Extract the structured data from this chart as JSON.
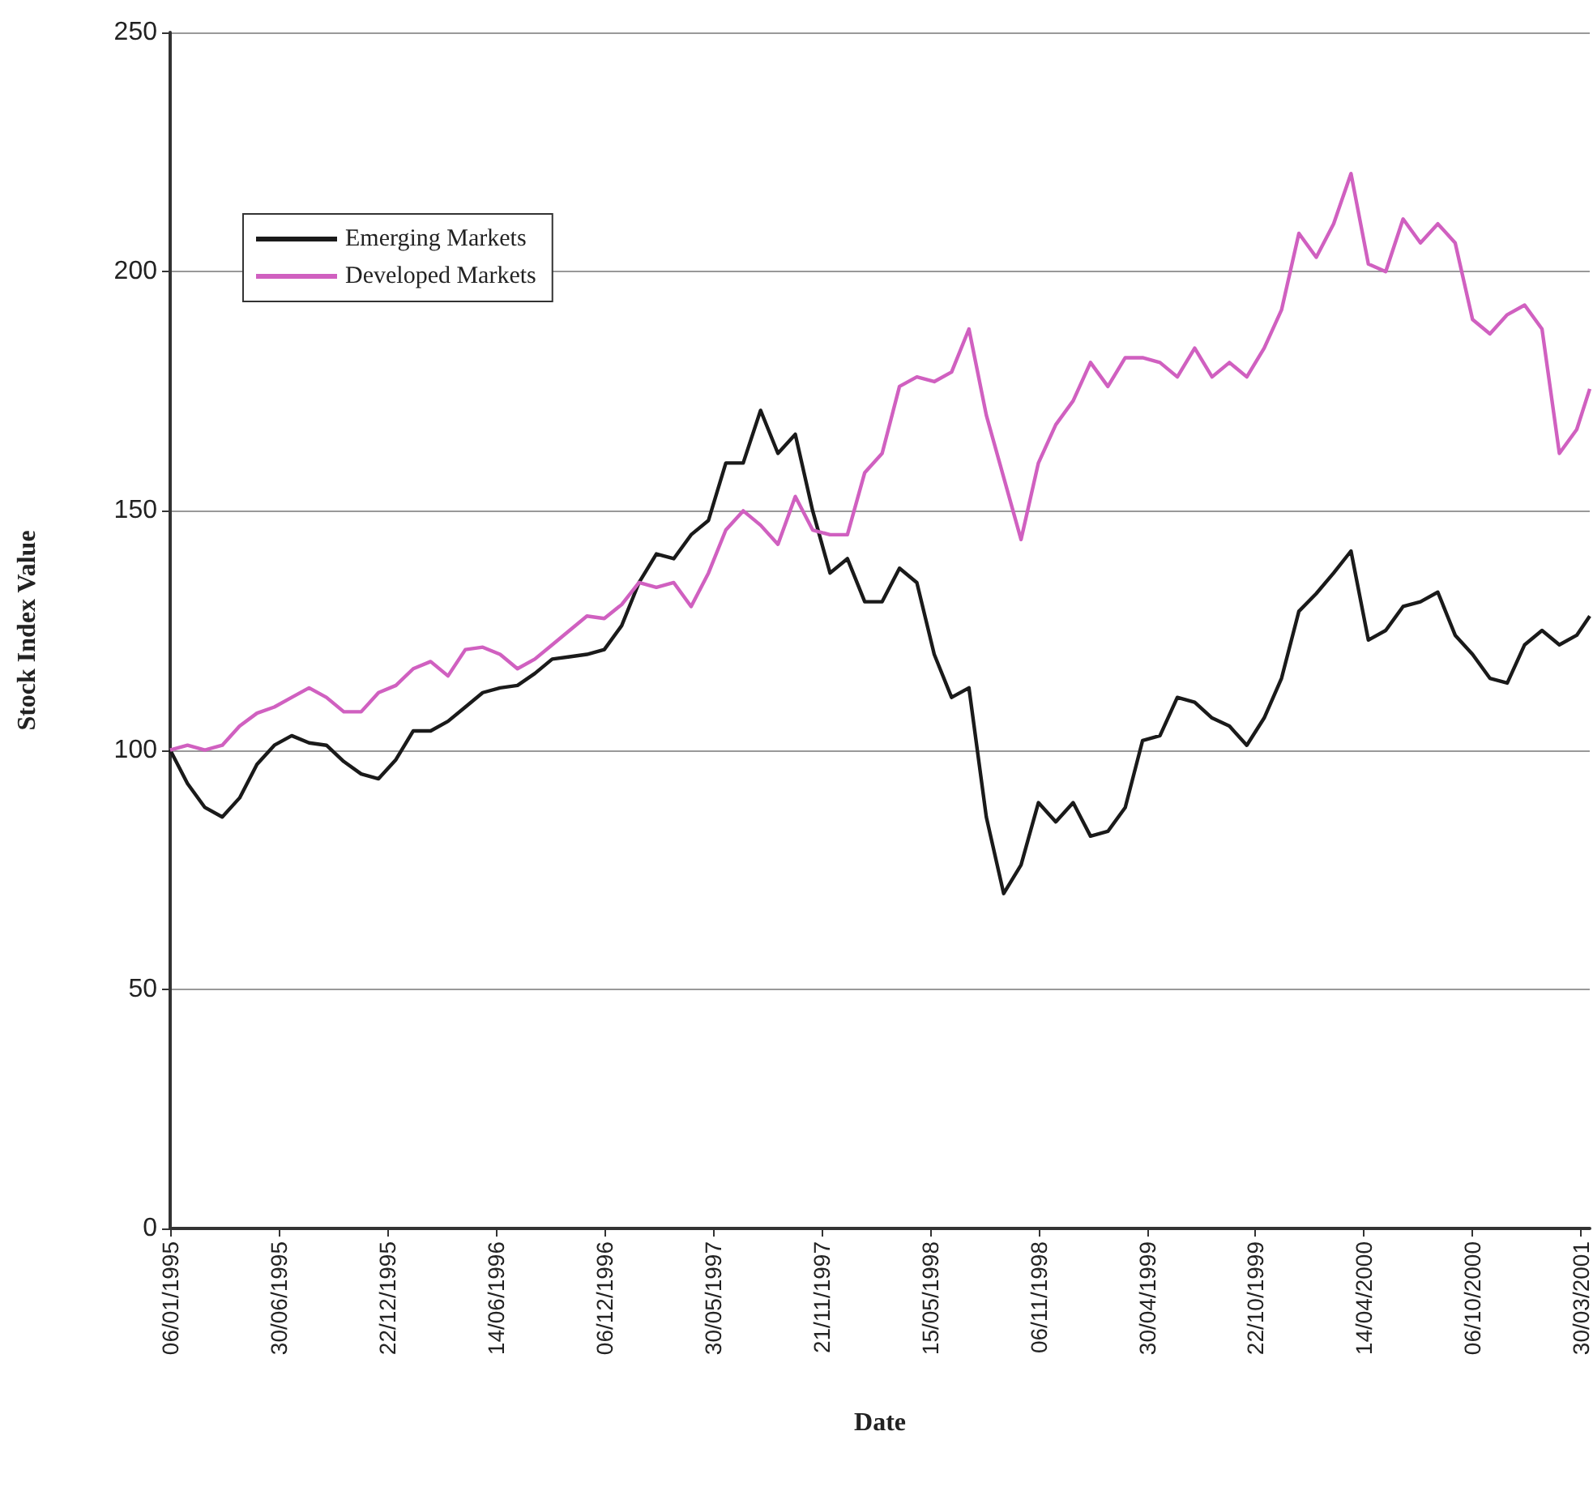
{
  "chart_data": {
    "type": "line",
    "xlabel": "Date",
    "ylabel": "Stock Index Value",
    "x": [
      "1995-01-06",
      "1995-02-03",
      "1995-03-03",
      "1995-03-31",
      "1995-04-28",
      "1995-05-26",
      "1995-06-23",
      "1995-07-21",
      "1995-08-18",
      "1995-09-15",
      "1995-10-13",
      "1995-11-10",
      "1995-12-08",
      "1996-01-05",
      "1996-02-02",
      "1996-03-01",
      "1996-03-29",
      "1996-04-26",
      "1996-05-24",
      "1996-06-21",
      "1996-07-19",
      "1996-08-16",
      "1996-09-13",
      "1996-10-11",
      "1996-11-08",
      "1996-12-06",
      "1997-01-03",
      "1997-01-31",
      "1997-02-28",
      "1997-03-28",
      "1997-04-25",
      "1997-05-23",
      "1997-06-20",
      "1997-07-18",
      "1997-08-15",
      "1997-09-12",
      "1997-10-10",
      "1997-11-07",
      "1997-12-05",
      "1998-01-02",
      "1998-01-30",
      "1998-02-27",
      "1998-03-27",
      "1998-04-24",
      "1998-05-22",
      "1998-06-19",
      "1998-07-17",
      "1998-08-14",
      "1998-09-11",
      "1998-10-09",
      "1998-11-06",
      "1998-12-04",
      "1999-01-01",
      "1999-01-29",
      "1999-02-26",
      "1999-03-26",
      "1999-04-23",
      "1999-05-21",
      "1999-06-18",
      "1999-07-16",
      "1999-08-13",
      "1999-09-10",
      "1999-10-08",
      "1999-11-05",
      "1999-12-03",
      "1999-12-31",
      "2000-01-28",
      "2000-02-25",
      "2000-03-24",
      "2000-04-21",
      "2000-05-19",
      "2000-06-16",
      "2000-07-14",
      "2000-08-11",
      "2000-09-08",
      "2000-10-06",
      "2000-11-03",
      "2000-12-01",
      "2000-12-29",
      "2001-01-26",
      "2001-02-23",
      "2001-03-23",
      "2001-04-13"
    ],
    "series": [
      {
        "name": "Emerging Markets",
        "color": "#1a1a1a",
        "values": [
          100,
          93,
          88,
          86,
          90,
          97,
          101,
          103,
          101.5,
          101,
          97.6,
          95,
          94,
          98,
          104,
          104,
          106,
          109,
          112,
          113,
          113.5,
          116,
          119,
          119.5,
          120,
          121,
          126,
          135,
          141,
          140,
          145,
          148,
          160,
          160,
          171,
          162,
          166,
          150,
          137,
          140,
          131,
          131,
          138,
          135,
          120,
          111,
          113,
          86,
          70,
          76,
          89,
          85,
          89,
          82,
          83,
          88,
          102,
          103,
          111,
          110,
          106.7,
          105,
          101,
          106.7,
          115,
          129,
          132.7,
          137,
          141.6,
          123,
          125,
          130,
          131,
          133,
          124,
          120,
          115,
          114,
          122,
          125,
          122,
          124,
          128
        ]
      },
      {
        "name": "Developed Markets",
        "color": "#d060c0",
        "values": [
          100,
          101,
          100,
          101,
          105,
          107.7,
          109,
          111,
          113,
          111,
          108,
          108,
          112,
          113.5,
          117,
          118.5,
          115.5,
          121,
          121.5,
          120,
          117,
          119,
          122,
          125,
          128,
          127.5,
          130.4,
          135,
          134,
          135,
          130,
          137,
          146,
          150,
          147,
          143,
          153,
          146,
          145,
          145,
          158,
          162,
          176,
          178,
          177,
          179,
          188,
          170,
          157,
          144,
          160,
          168,
          173,
          181,
          176,
          182,
          182,
          181,
          178,
          184,
          178,
          181,
          178,
          184,
          192,
          208,
          203,
          210,
          220.5,
          201.6,
          200,
          211,
          206,
          210,
          206,
          190,
          187,
          191,
          193,
          188,
          162,
          167,
          175.5
        ]
      }
    ],
    "xlim": [
      "1995-01-06",
      "2001-04-13"
    ],
    "xticks": [
      {
        "value": "1995-01-06",
        "label": "06/01/1995"
      },
      {
        "value": "1995-06-30",
        "label": "30/06/1995"
      },
      {
        "value": "1995-12-22",
        "label": "22/12/1995"
      },
      {
        "value": "1996-06-14",
        "label": "14/06/1996"
      },
      {
        "value": "1996-12-06",
        "label": "06/12/1996"
      },
      {
        "value": "1997-05-30",
        "label": "30/05/1997"
      },
      {
        "value": "1997-11-21",
        "label": "21/11/1997"
      },
      {
        "value": "1998-05-15",
        "label": "15/05/1998"
      },
      {
        "value": "1998-11-06",
        "label": "06/11/1998"
      },
      {
        "value": "1999-04-30",
        "label": "30/04/1999"
      },
      {
        "value": "1999-10-22",
        "label": "22/10/1999"
      },
      {
        "value": "2000-04-14",
        "label": "14/04/2000"
      },
      {
        "value": "2000-10-06",
        "label": "06/10/2000"
      },
      {
        "value": "2001-03-30",
        "label": "30/03/2001"
      }
    ],
    "ylim": [
      0,
      250
    ],
    "yticks": [
      0,
      50,
      100,
      150,
      200,
      250
    ],
    "grid": "y",
    "legend": "top left"
  }
}
